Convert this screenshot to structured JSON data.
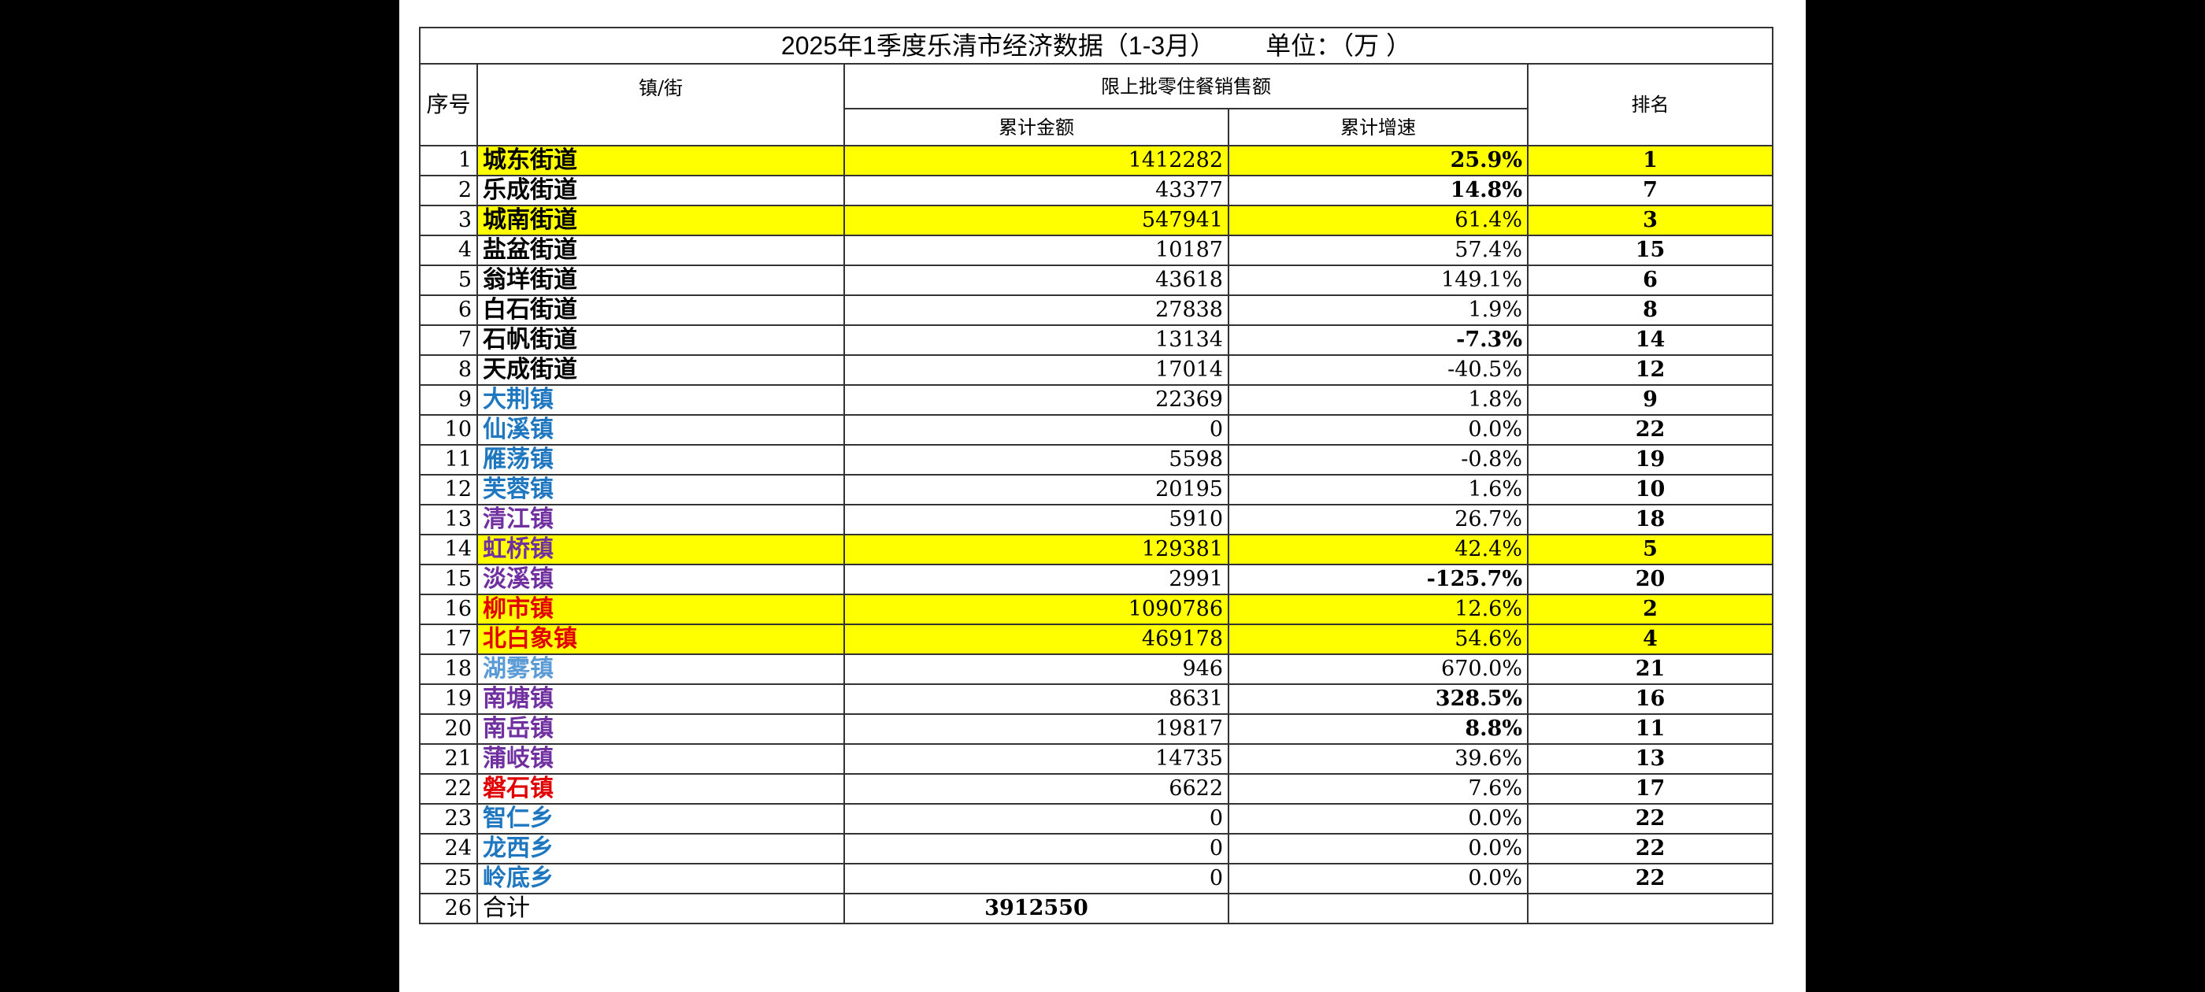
{
  "header": {
    "title": "2025年1季度乐清市经济数据（1-3月）",
    "unit": "单位：（万 ）"
  },
  "table": {
    "columns": {
      "no": "序号",
      "name": "镇/街",
      "group": "限上批零住餐销售额",
      "amount": "累计金额",
      "growth": "累计增速",
      "rank": "排名"
    },
    "rows": [
      {
        "no": "1",
        "name": "城东街道",
        "amount": "1412282",
        "growth": "25.9%",
        "rank": "1",
        "highlight": true,
        "name_color": "#000000",
        "growth_bold": true
      },
      {
        "no": "2",
        "name": "乐成街道",
        "amount": "43377",
        "growth": "14.8%",
        "rank": "7",
        "highlight": false,
        "name_color": "#000000",
        "growth_bold": true
      },
      {
        "no": "3",
        "name": "城南街道",
        "amount": "547941",
        "growth": "61.4%",
        "rank": "3",
        "highlight": true,
        "name_color": "#000000",
        "growth_bold": false
      },
      {
        "no": "4",
        "name": "盐盆街道",
        "amount": "10187",
        "growth": "57.4%",
        "rank": "15",
        "highlight": false,
        "name_color": "#000000",
        "growth_bold": false
      },
      {
        "no": "5",
        "name": "翁垟街道",
        "amount": "43618",
        "growth": "149.1%",
        "rank": "6",
        "highlight": false,
        "name_color": "#000000",
        "growth_bold": false
      },
      {
        "no": "6",
        "name": "白石街道",
        "amount": "27838",
        "growth": "1.9%",
        "rank": "8",
        "highlight": false,
        "name_color": "#000000",
        "growth_bold": false
      },
      {
        "no": "7",
        "name": "石帆街道",
        "amount": "13134",
        "growth": "-7.3%",
        "rank": "14",
        "highlight": false,
        "name_color": "#000000",
        "growth_bold": true
      },
      {
        "no": "8",
        "name": "天成街道",
        "amount": "17014",
        "growth": "-40.5%",
        "rank": "12",
        "highlight": false,
        "name_color": "#000000",
        "growth_bold": false
      },
      {
        "no": "9",
        "name": "大荆镇",
        "amount": "22369",
        "growth": "1.8%",
        "rank": "9",
        "highlight": false,
        "name_color": "#1f77c0",
        "growth_bold": false
      },
      {
        "no": "10",
        "name": "仙溪镇",
        "amount": "0",
        "growth": "0.0%",
        "rank": "22",
        "highlight": false,
        "name_color": "#1f77c0",
        "growth_bold": false
      },
      {
        "no": "11",
        "name": "雁荡镇",
        "amount": "5598",
        "growth": "-0.8%",
        "rank": "19",
        "highlight": false,
        "name_color": "#1f77c0",
        "growth_bold": false
      },
      {
        "no": "12",
        "name": "芙蓉镇",
        "amount": "20195",
        "growth": "1.6%",
        "rank": "10",
        "highlight": false,
        "name_color": "#1f77c0",
        "growth_bold": false
      },
      {
        "no": "13",
        "name": "清江镇",
        "amount": "5910",
        "growth": "26.7%",
        "rank": "18",
        "highlight": false,
        "name_color": "#7030a0",
        "growth_bold": false
      },
      {
        "no": "14",
        "name": "虹桥镇",
        "amount": "129381",
        "growth": "42.4%",
        "rank": "5",
        "highlight": true,
        "name_color": "#7030a0",
        "growth_bold": false
      },
      {
        "no": "15",
        "name": "淡溪镇",
        "amount": "2991",
        "growth": "-125.7%",
        "rank": "20",
        "highlight": false,
        "name_color": "#7030a0",
        "growth_bold": true
      },
      {
        "no": "16",
        "name": "柳市镇",
        "amount": "1090786",
        "growth": "12.6%",
        "rank": "2",
        "highlight": true,
        "name_color": "#e00000",
        "growth_bold": false
      },
      {
        "no": "17",
        "name": "北白象镇",
        "amount": "469178",
        "growth": "54.6%",
        "rank": "4",
        "highlight": true,
        "name_color": "#e00000",
        "growth_bold": false
      },
      {
        "no": "18",
        "name": "湖雾镇",
        "amount": "946",
        "growth": "670.0%",
        "rank": "21",
        "highlight": false,
        "name_color": "#5b9bd5",
        "growth_bold": false
      },
      {
        "no": "19",
        "name": "南塘镇",
        "amount": "8631",
        "growth": "328.5%",
        "rank": "16",
        "highlight": false,
        "name_color": "#7030a0",
        "growth_bold": true
      },
      {
        "no": "20",
        "name": "南岳镇",
        "amount": "19817",
        "growth": "8.8%",
        "rank": "11",
        "highlight": false,
        "name_color": "#7030a0",
        "growth_bold": true
      },
      {
        "no": "21",
        "name": "蒲岐镇",
        "amount": "14735",
        "growth": "39.6%",
        "rank": "13",
        "highlight": false,
        "name_color": "#7030a0",
        "growth_bold": false
      },
      {
        "no": "22",
        "name": "磐石镇",
        "amount": "6622",
        "growth": "7.6%",
        "rank": "17",
        "highlight": false,
        "name_color": "#e00000",
        "growth_bold": false
      },
      {
        "no": "23",
        "name": "智仁乡",
        "amount": "0",
        "growth": "0.0%",
        "rank": "22",
        "highlight": false,
        "name_color": "#1f77c0",
        "growth_bold": false
      },
      {
        "no": "24",
        "name": "龙西乡",
        "amount": "0",
        "growth": "0.0%",
        "rank": "22",
        "highlight": false,
        "name_color": "#1f77c0",
        "growth_bold": false
      },
      {
        "no": "25",
        "name": "岭底乡",
        "amount": "0",
        "growth": "0.0%",
        "rank": "22",
        "highlight": false,
        "name_color": "#1f77c0",
        "growth_bold": false
      }
    ],
    "total": {
      "no": "26",
      "name": "合计",
      "amount": "3912550"
    }
  }
}
